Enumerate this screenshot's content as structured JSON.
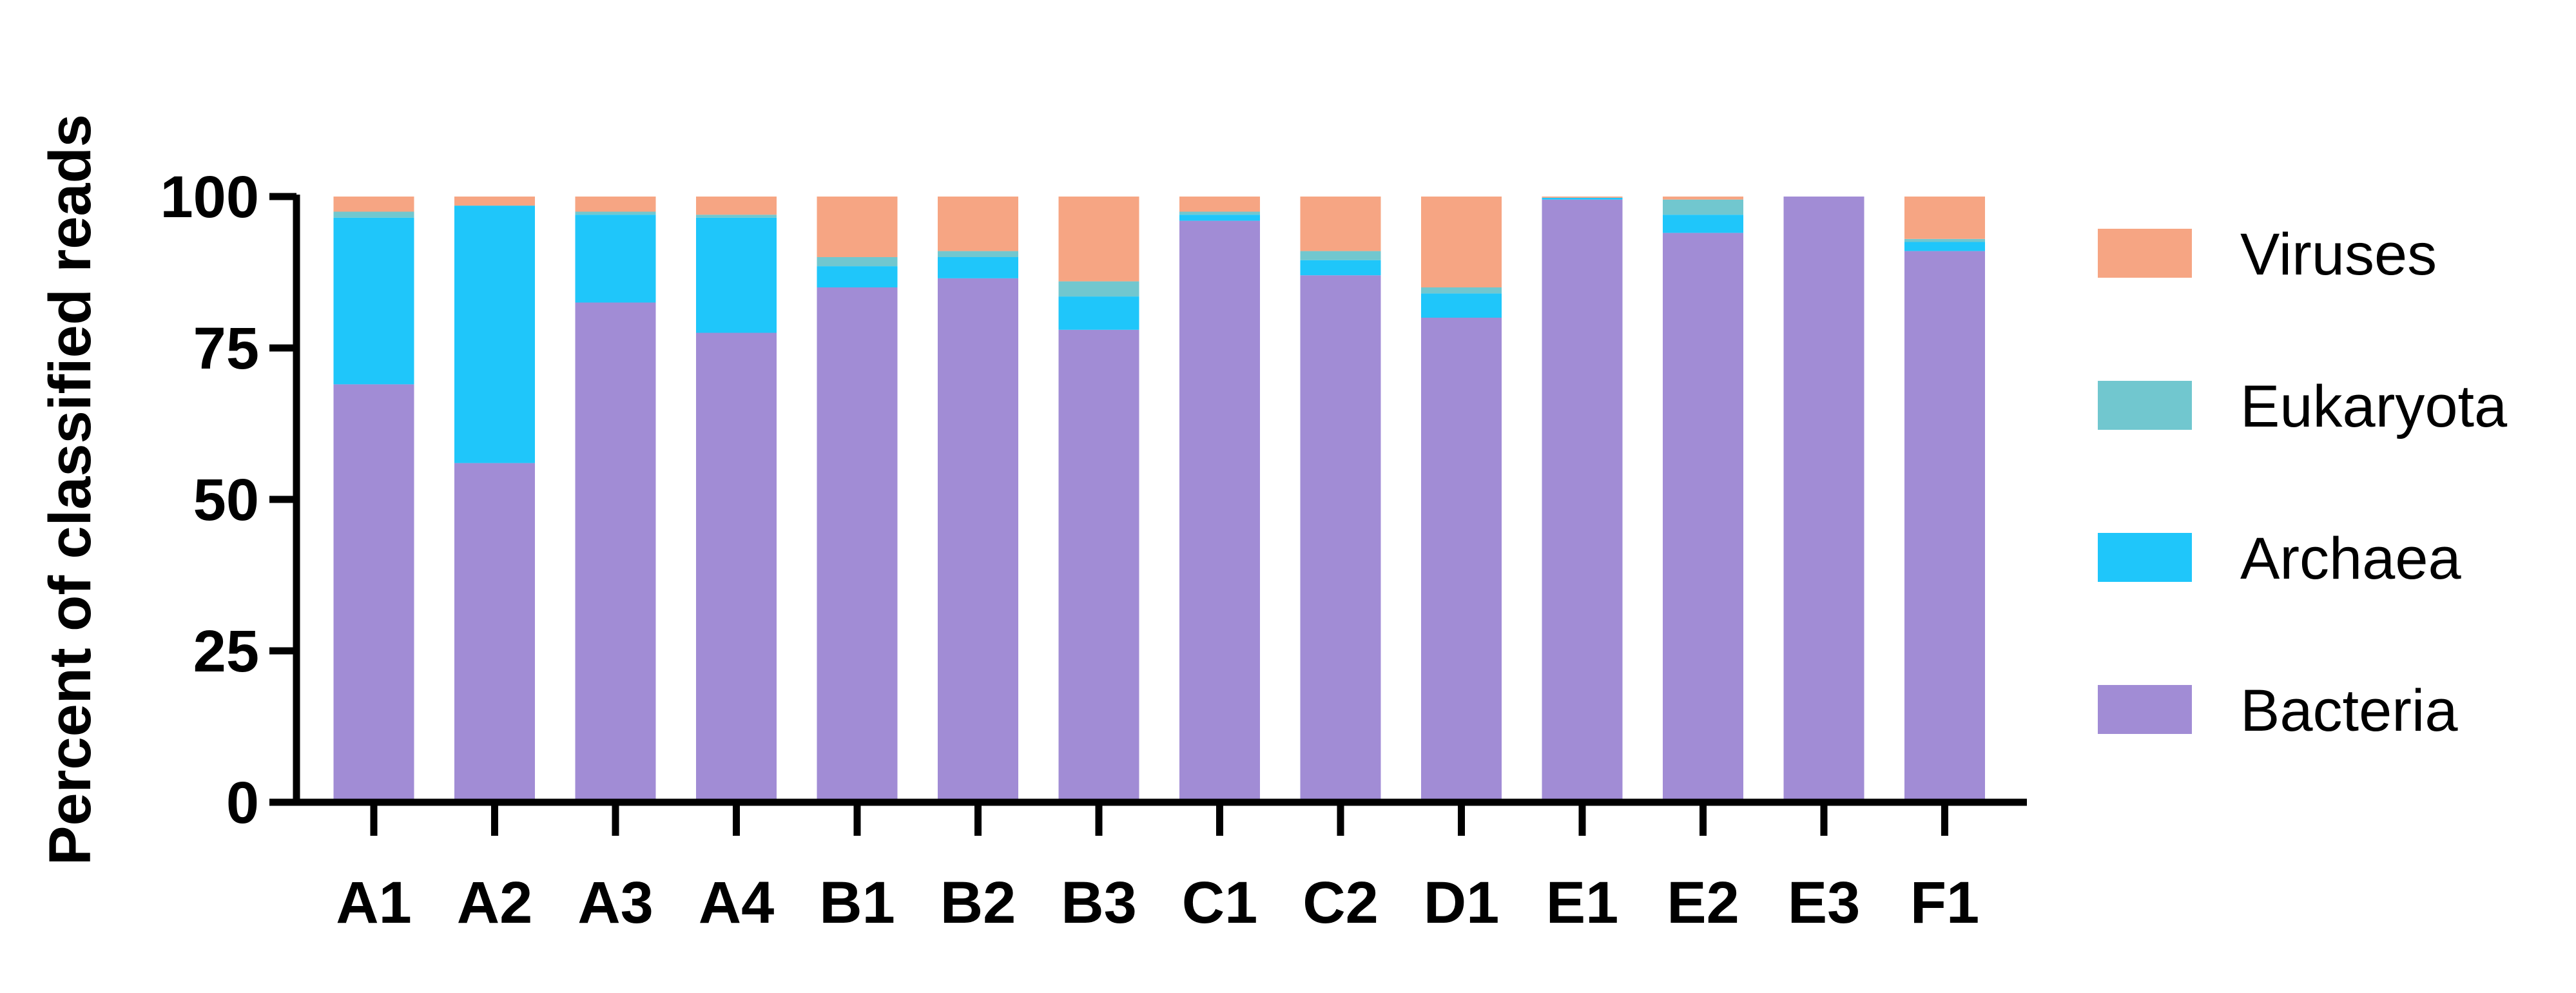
{
  "chart_data": {
    "type": "bar",
    "stacked": true,
    "title": "",
    "xlabel": "",
    "ylabel": "Percent of classified reads",
    "ylim": [
      0,
      100
    ],
    "yticks": [
      0,
      25,
      50,
      75,
      100
    ],
    "grid": false,
    "legend_position": "right",
    "categories": [
      "A1",
      "A2",
      "A3",
      "A4",
      "B1",
      "B2",
      "B3",
      "C1",
      "C2",
      "D1",
      "E1",
      "E2",
      "E3",
      "F1"
    ],
    "series": [
      {
        "name": "Bacteria",
        "color": "#a18cd5",
        "values": [
          69,
          56,
          82.5,
          77.5,
          85,
          86.5,
          78,
          96,
          87,
          80,
          99.5,
          94,
          100,
          91
        ]
      },
      {
        "name": "Archaea",
        "color": "#1fc6fa",
        "values": [
          27.5,
          42.5,
          14.5,
          19,
          3.5,
          3.5,
          5.5,
          1,
          2.5,
          4,
          0.3,
          3,
          0,
          1.5
        ]
      },
      {
        "name": "Eukaryota",
        "color": "#71c7cf",
        "values": [
          1,
          0,
          0.5,
          0.5,
          1.5,
          1,
          2.5,
          0.5,
          1.5,
          1,
          0,
          2.5,
          0,
          0.5
        ]
      },
      {
        "name": "Viruses",
        "color": "#f6a583",
        "values": [
          2.5,
          1.5,
          2.5,
          3,
          10,
          9,
          14,
          2.5,
          9,
          15,
          0.2,
          0.5,
          0,
          7
        ]
      }
    ],
    "legend_order": [
      "Viruses",
      "Eukaryota",
      "Archaea",
      "Bacteria"
    ]
  }
}
